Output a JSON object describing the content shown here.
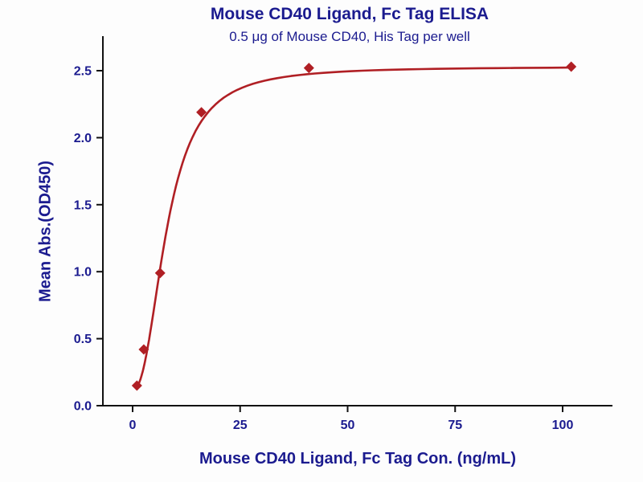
{
  "chart_data": {
    "type": "scatter",
    "title": "Mouse CD40 Ligand, Fc Tag ELISA",
    "subtitle": "0.5 μg of Mouse CD40, His Tag per well",
    "xlabel": "Mouse CD40 Ligand, Fc Tag Con. (ng/mL)",
    "ylabel": "Mean Abs.(OD450)",
    "points": {
      "x": [
        1.0,
        2.6,
        6.4,
        16,
        41,
        102
      ],
      "y": [
        0.15,
        0.42,
        0.99,
        2.19,
        2.52,
        2.53
      ]
    },
    "fit": {
      "type": "4PL",
      "min": 0.12,
      "max": 2.53,
      "ec50": 8.0,
      "hill": 2.3,
      "x_start": 1.0,
      "x_end": 102
    },
    "x_ticks": [
      "0",
      "25",
      "50",
      "75",
      "100"
    ],
    "y_ticks": [
      "0.0",
      "0.5",
      "1.0",
      "1.5",
      "2.0",
      "2.5"
    ],
    "xlim": [
      0,
      100
    ],
    "ylim": [
      0,
      2.5
    ],
    "grid": false,
    "legend": false,
    "marker": "diamond",
    "colors": {
      "text": "#1b1b8f",
      "curve": "#b01f24",
      "marker": "#b01f24",
      "axis": "#111111"
    }
  }
}
